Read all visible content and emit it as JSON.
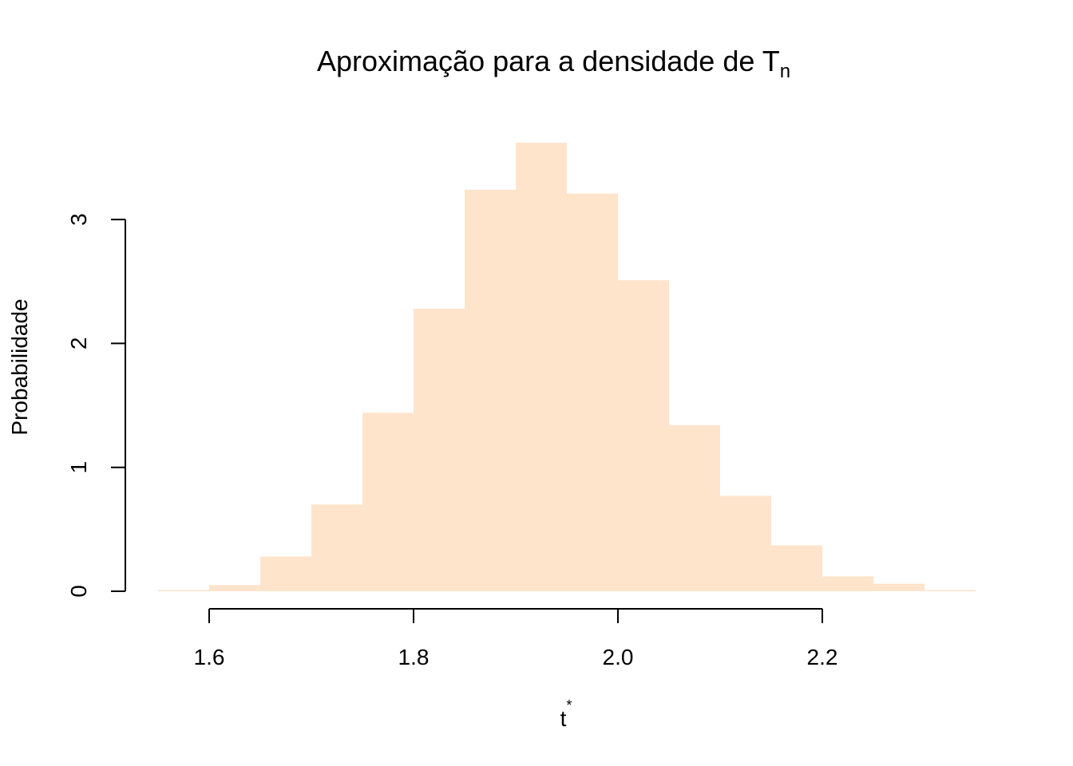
{
  "chart_data": {
    "type": "bar",
    "title": "Aproximação para a densidade de T",
    "title_subscript": "n",
    "xlabel": "t",
    "xlabel_superscript": "*",
    "ylabel": "Probabilidade",
    "bar_color": "#FFE4CC",
    "bin_edges": [
      1.55,
      1.6,
      1.65,
      1.7,
      1.75,
      1.8,
      1.85,
      1.9,
      1.95,
      2.0,
      2.05,
      2.1,
      2.15,
      2.2,
      2.25,
      2.3,
      2.35
    ],
    "values": [
      0.01,
      0.05,
      0.28,
      0.7,
      1.44,
      2.28,
      3.24,
      3.62,
      3.21,
      2.51,
      1.34,
      0.77,
      0.37,
      0.12,
      0.06,
      0.01
    ],
    "xlim": [
      1.55,
      2.35
    ],
    "ylim": [
      0,
      3.7
    ],
    "x_ticks": [
      "1.6",
      "1.8",
      "2.0",
      "2.2"
    ],
    "y_ticks": [
      "0",
      "1",
      "2",
      "3"
    ],
    "grid": false,
    "legend": "none"
  }
}
